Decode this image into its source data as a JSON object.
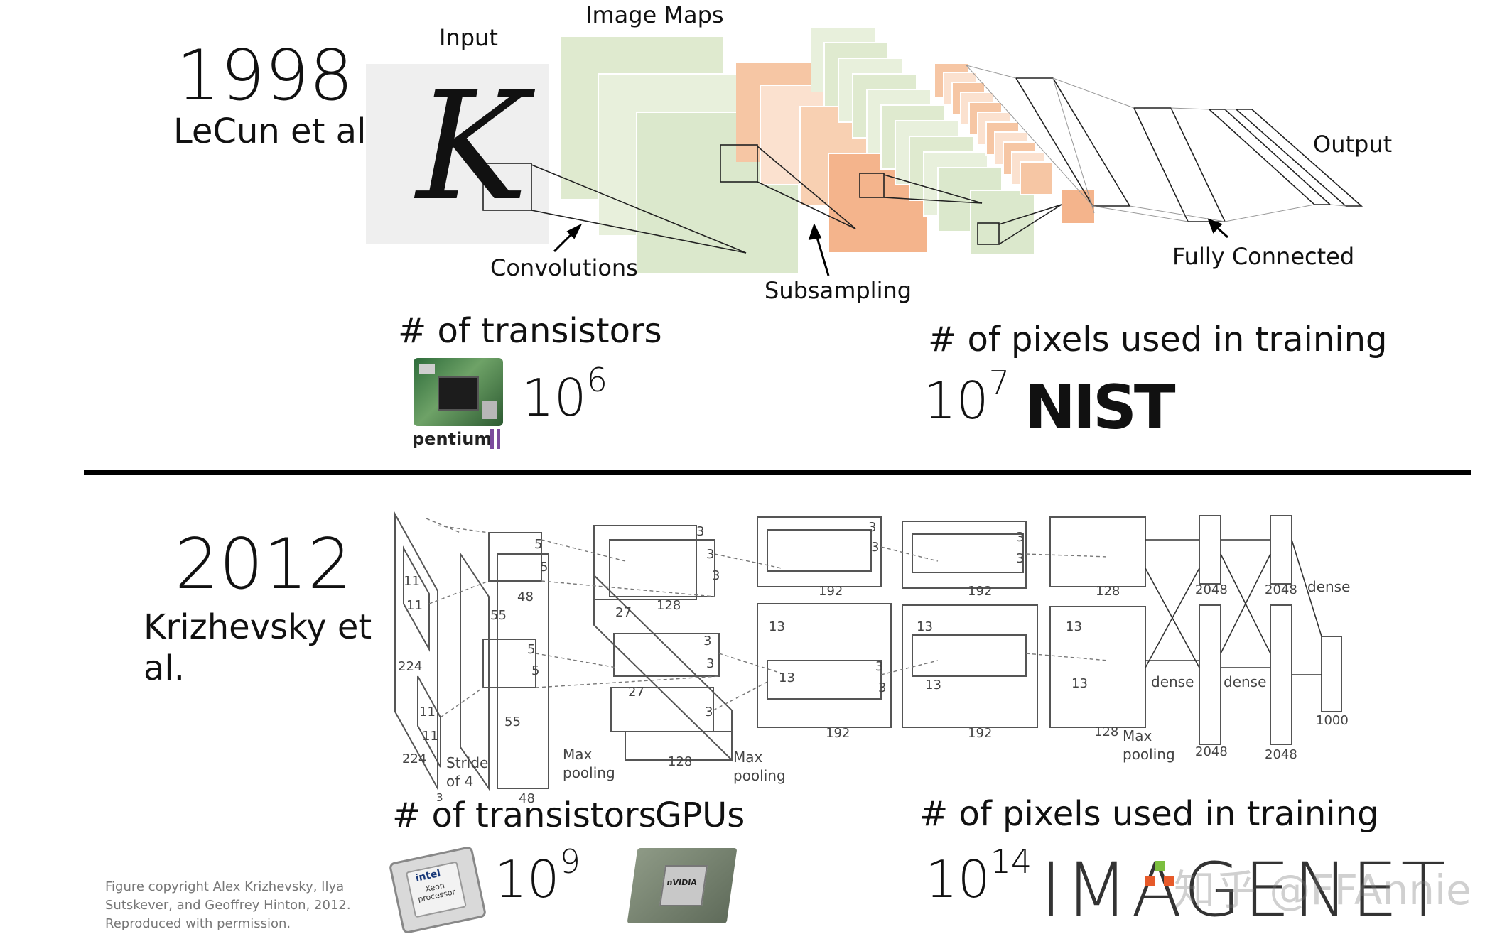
{
  "top": {
    "year": "1998",
    "author": "LeCun et al.",
    "diagram": {
      "input_label": "Input",
      "input_glyph": "K",
      "image_maps_label": "Image Maps",
      "convolutions_label": "Convolutions",
      "subsampling_label": "Subsampling",
      "output_label": "Output",
      "fully_connected_label": "Fully Connected"
    },
    "transistors_label": "# of transistors",
    "transistors_base": "10",
    "transistors_exp": "6",
    "chip_brand": "pentium",
    "pixels_label": "# of pixels used in training",
    "pixels_base": "10",
    "pixels_exp": "7",
    "dataset_logo": "NIST"
  },
  "bottom": {
    "year": "2012",
    "author_line1": "Krizhevsky et",
    "author_line2": "al.",
    "diagram": {
      "dims": [
        "11",
        "11",
        "224",
        "224",
        "11",
        "11",
        "Stride",
        "of 4",
        "3",
        "5",
        "5",
        "48",
        "55",
        "5",
        "5",
        "55",
        "48",
        "27",
        "128",
        "27",
        "128",
        "3",
        "3",
        "3",
        "3",
        "3",
        "3",
        "192",
        "13",
        "13",
        "3",
        "3",
        "192",
        "13",
        "3",
        "3",
        "192",
        "13",
        "3",
        "3",
        "192",
        "128",
        "13",
        "13",
        "128",
        "Max",
        "pooling",
        "Max",
        "pooling",
        "Max",
        "pooling",
        "2048",
        "2048",
        "dense",
        "dense",
        "dense",
        "2048",
        "2048",
        "1000"
      ]
    },
    "transistors_label": "# of transistors",
    "gpus_label": "GPUs",
    "transistors_base": "10",
    "transistors_exp": "9",
    "cpu_brand": "intel",
    "cpu_text": "Xeon processor",
    "gpu_brand": "nVIDIA",
    "pixels_label": "# of pixels used in training",
    "pixels_base": "10",
    "pixels_exp": "14",
    "dataset_logo": "IMAGENET",
    "credit": "Figure copyright Alex Krizhevsky, Ilya Sutskever, and Geoffrey Hinton, 2012. Reproduced with permission.",
    "watermark": "知乎 @FFAnnie"
  },
  "colors": {
    "green": "#dbe8cc",
    "orange": "#f4b48c",
    "divider": "#000000"
  }
}
